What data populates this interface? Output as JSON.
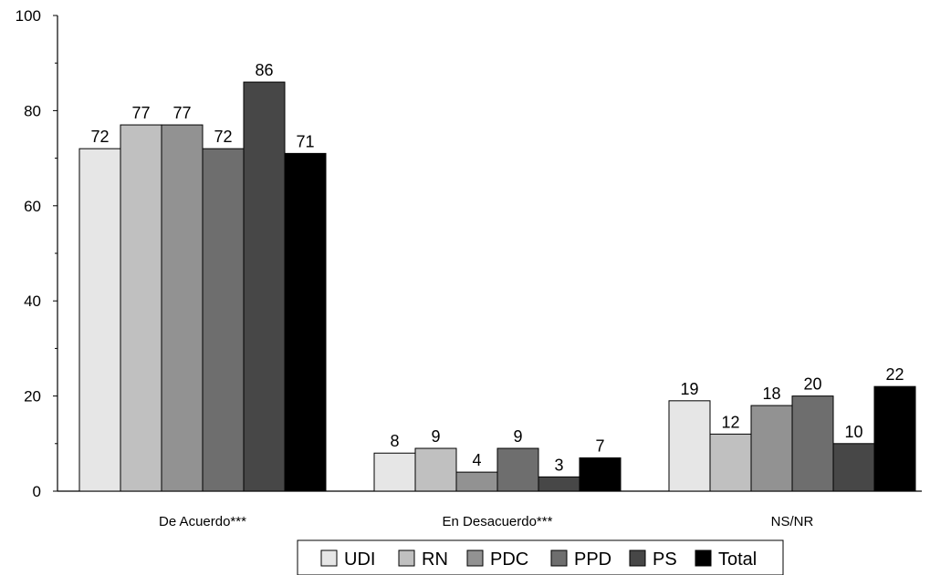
{
  "chart_data": {
    "type": "bar",
    "categories": [
      "De Acuerdo***",
      "En Desacuerdo***",
      "NS/NR"
    ],
    "series": [
      {
        "name": "UDI",
        "color": "#e6e6e6",
        "values": [
          72,
          8,
          19
        ]
      },
      {
        "name": "RN",
        "color": "#c0c0c0",
        "values": [
          77,
          9,
          12
        ]
      },
      {
        "name": "PDC",
        "color": "#929292",
        "values": [
          77,
          4,
          18
        ]
      },
      {
        "name": "PPD",
        "color": "#6e6e6e",
        "values": [
          72,
          9,
          20
        ]
      },
      {
        "name": "PS",
        "color": "#474747",
        "values": [
          86,
          3,
          10
        ]
      },
      {
        "name": "Total",
        "color": "#000000",
        "values": [
          71,
          7,
          22
        ]
      }
    ],
    "ylim": [
      0,
      100
    ],
    "yticks": [
      0,
      20,
      40,
      60,
      80,
      100
    ],
    "legend_position": "bottom",
    "grid": false
  }
}
